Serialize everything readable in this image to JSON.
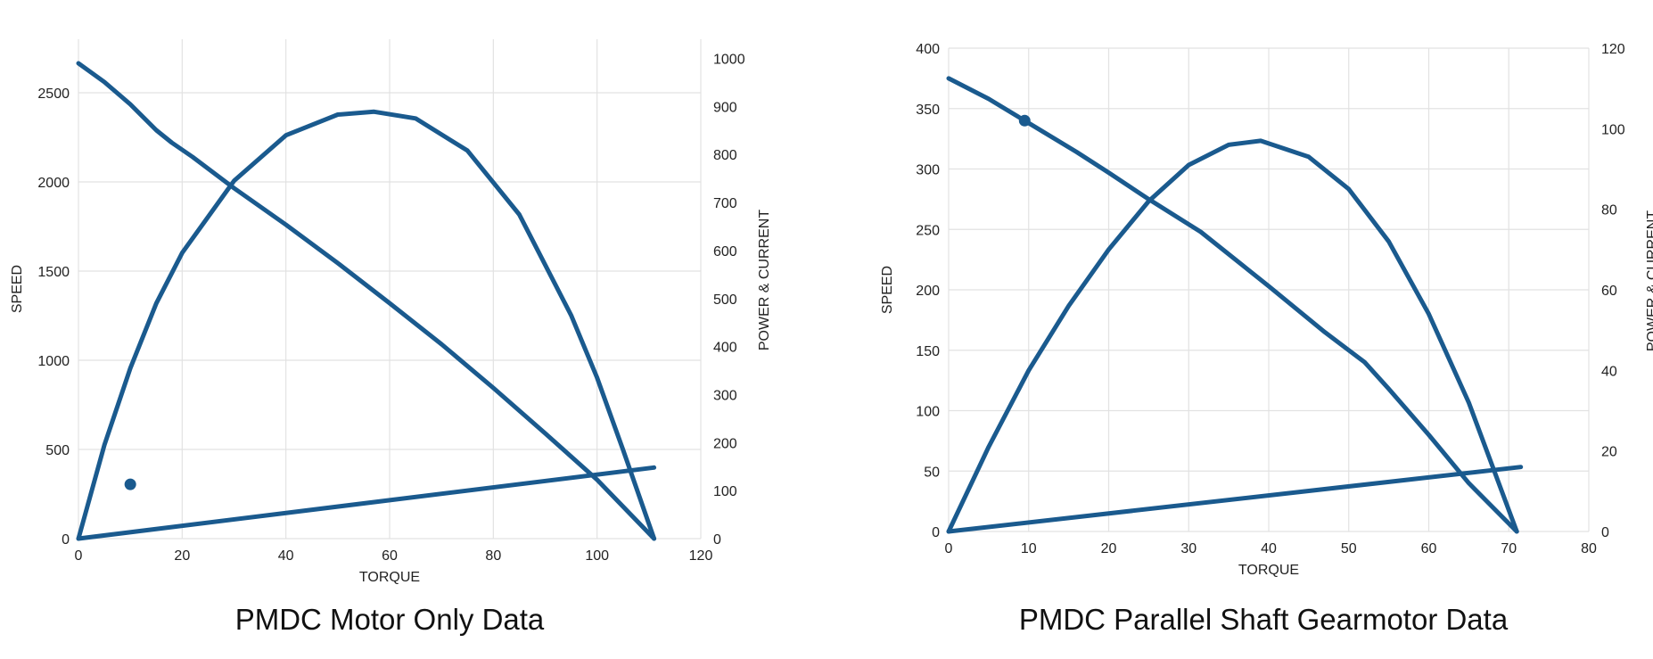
{
  "chart_data": [
    {
      "type": "line",
      "title": "",
      "caption": "PMDC Motor Only Data",
      "xlabel": "TORQUE",
      "ylabel": "SPEED",
      "y2label": "POWER & CURRENT",
      "xlim": [
        0,
        120
      ],
      "ylim": [
        0,
        2800
      ],
      "y2lim": [
        0,
        1040
      ],
      "xticks": [
        0,
        20,
        40,
        60,
        80,
        100,
        120
      ],
      "yticks": [
        0,
        500,
        1000,
        1500,
        2000,
        2500
      ],
      "y2ticks": [
        0,
        100,
        200,
        300,
        400,
        500,
        600,
        700,
        800,
        900,
        1000
      ],
      "grid": true,
      "series": [
        {
          "axis": "left",
          "x": [
            0,
            5,
            10,
            15,
            18,
            22,
            30,
            40,
            50,
            60,
            70,
            80,
            90,
            100,
            111
          ],
          "y": [
            2665,
            2560,
            2435,
            2290,
            2220,
            2140,
            1965,
            1760,
            1545,
            1320,
            1090,
            845,
            590,
            330,
            0
          ]
        },
        {
          "axis": "right",
          "x": [
            0,
            5,
            10,
            15,
            20,
            30,
            40,
            50,
            57,
            65,
            75,
            85,
            95,
            100,
            105,
            111
          ],
          "y": [
            0,
            195,
            355,
            490,
            595,
            745,
            840,
            883,
            889,
            875,
            808,
            675,
            465,
            335,
            185,
            0
          ]
        },
        {
          "axis": "right",
          "x": [
            0,
            111
          ],
          "y": [
            0,
            148
          ]
        }
      ],
      "points": [
        {
          "axis": "right",
          "x": 10,
          "y": 113
        }
      ]
    },
    {
      "type": "line",
      "title": "",
      "caption": "PMDC Parallel Shaft Gearmotor Data",
      "xlabel": "TORQUE",
      "ylabel": "SPEED",
      "y2label": "POWER & CURRENT",
      "xlim": [
        0,
        80
      ],
      "ylim": [
        0,
        400
      ],
      "y2lim": [
        0,
        120
      ],
      "xticks": [
        0,
        10,
        20,
        30,
        40,
        50,
        60,
        70,
        80
      ],
      "yticks": [
        0,
        50,
        100,
        150,
        200,
        250,
        300,
        350,
        400
      ],
      "y2ticks": [
        0,
        20,
        40,
        60,
        80,
        100,
        120
      ],
      "grid": true,
      "series": [
        {
          "axis": "left",
          "x": [
            0,
            5,
            9.5,
            16,
            20,
            25,
            31.5,
            40,
            47,
            52,
            55,
            60,
            65,
            71
          ],
          "y": [
            375,
            358,
            340,
            314,
            297,
            275,
            248,
            203,
            165,
            140,
            118,
            80,
            40,
            0
          ]
        },
        {
          "axis": "right",
          "x": [
            0,
            5,
            10,
            15,
            20,
            25,
            30,
            35,
            39,
            45,
            50,
            55,
            60,
            65,
            71
          ],
          "y": [
            0,
            21,
            40,
            56,
            70,
            82,
            91,
            96,
            97,
            93,
            85,
            72,
            54,
            32,
            0
          ]
        },
        {
          "axis": "right",
          "x": [
            0,
            71.5
          ],
          "y": [
            0,
            16
          ]
        }
      ],
      "points": [
        {
          "axis": "left",
          "x": 9.5,
          "y": 340
        }
      ]
    }
  ]
}
